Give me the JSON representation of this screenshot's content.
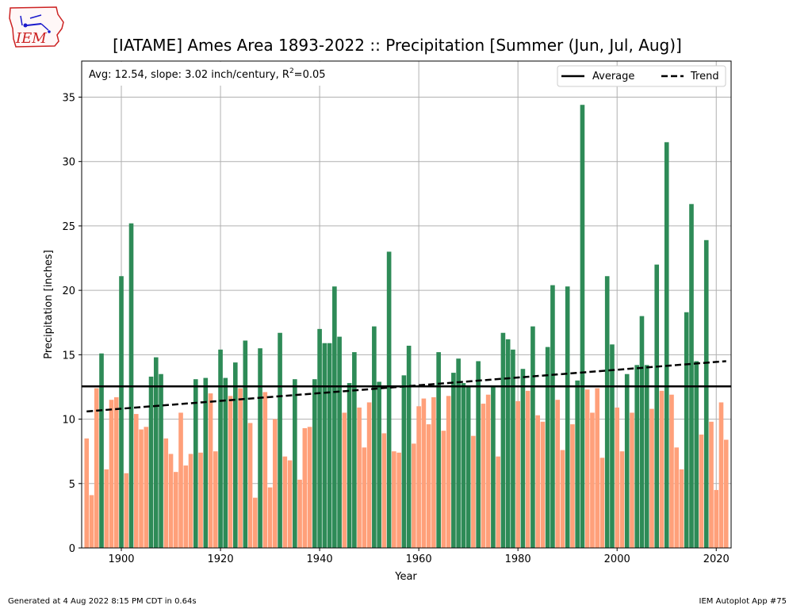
{
  "logo_text": "IEM",
  "footer": {
    "generated": "Generated at 4 Aug 2022 8:15 PM CDT in 0.64s",
    "app": "IEM Autoplot App #75"
  },
  "chart_data": {
    "type": "bar",
    "title": "[IATAME] Ames Area 1893-2022 :: Precipitation [Summer (Jun, Jul, Aug)]",
    "xlabel": "Year",
    "ylabel": "Precipitation [inches]",
    "annotation": {
      "text": "Avg: 12.54, slope: 3.02 inch/century, R",
      "sup": "2",
      "suffix": "=0.05"
    },
    "xlim": [
      1892,
      2023
    ],
    "ylim": [
      0,
      37.8
    ],
    "xticks": [
      1900,
      1920,
      1940,
      1960,
      1980,
      2000,
      2020
    ],
    "yticks": [
      0,
      5,
      10,
      15,
      20,
      25,
      30,
      35
    ],
    "grid": true,
    "legend": {
      "position": "top-right",
      "entries": [
        "Average",
        "Trend"
      ]
    },
    "average": 12.54,
    "trend": {
      "start_year": 1893,
      "start_value": 10.6,
      "end_year": 2022,
      "end_value": 14.5
    },
    "colors": {
      "above": "#2e8b57",
      "below": "#ffa07a",
      "lines": "#000000"
    },
    "x": [
      1893,
      1894,
      1895,
      1896,
      1897,
      1898,
      1899,
      1900,
      1901,
      1902,
      1903,
      1904,
      1905,
      1906,
      1907,
      1908,
      1909,
      1910,
      1911,
      1912,
      1913,
      1914,
      1915,
      1916,
      1917,
      1918,
      1919,
      1920,
      1921,
      1922,
      1923,
      1924,
      1925,
      1926,
      1927,
      1928,
      1929,
      1930,
      1931,
      1932,
      1933,
      1934,
      1935,
      1936,
      1937,
      1938,
      1939,
      1940,
      1941,
      1942,
      1943,
      1944,
      1945,
      1946,
      1947,
      1948,
      1949,
      1950,
      1951,
      1952,
      1953,
      1954,
      1955,
      1956,
      1957,
      1958,
      1959,
      1960,
      1961,
      1962,
      1963,
      1964,
      1965,
      1966,
      1967,
      1968,
      1969,
      1970,
      1971,
      1972,
      1973,
      1974,
      1975,
      1976,
      1977,
      1978,
      1979,
      1980,
      1981,
      1982,
      1983,
      1984,
      1985,
      1986,
      1987,
      1988,
      1989,
      1990,
      1991,
      1992,
      1993,
      1994,
      1995,
      1996,
      1997,
      1998,
      1999,
      2000,
      2001,
      2002,
      2003,
      2004,
      2005,
      2006,
      2007,
      2008,
      2009,
      2010,
      2011,
      2012,
      2013,
      2014,
      2015,
      2016,
      2017,
      2018,
      2019,
      2020,
      2021,
      2022
    ],
    "values": [
      8.5,
      4.1,
      12.4,
      15.1,
      6.1,
      11.5,
      11.7,
      21.1,
      5.8,
      25.2,
      10.4,
      9.2,
      9.4,
      13.3,
      14.8,
      13.5,
      8.5,
      7.3,
      5.9,
      10.5,
      6.4,
      7.3,
      13.1,
      7.4,
      13.2,
      12.0,
      7.5,
      15.4,
      13.2,
      11.8,
      14.4,
      12.4,
      16.1,
      9.7,
      3.9,
      15.5,
      12.1,
      4.7,
      10.0,
      16.7,
      7.1,
      6.8,
      13.1,
      5.3,
      9.3,
      9.4,
      13.1,
      17.0,
      15.9,
      15.9,
      20.3,
      16.4,
      10.5,
      12.8,
      15.2,
      10.9,
      7.8,
      11.3,
      17.2,
      12.9,
      8.9,
      23.0,
      7.5,
      7.4,
      13.4,
      15.7,
      8.1,
      11.0,
      11.6,
      9.6,
      11.7,
      15.2,
      9.1,
      11.8,
      13.6,
      14.7,
      12.8,
      12.6,
      8.7,
      14.5,
      11.2,
      11.9,
      12.6,
      7.1,
      16.7,
      16.2,
      15.4,
      11.4,
      13.9,
      12.2,
      17.2,
      10.3,
      9.8,
      15.6,
      20.4,
      11.5,
      7.6,
      20.3,
      9.6,
      13.0,
      34.4,
      12.3,
      10.5,
      12.4,
      7.0,
      21.1,
      15.8,
      10.9,
      7.5,
      13.5,
      10.5,
      14.2,
      18.0,
      14.2,
      10.8,
      22.0,
      12.2,
      31.5,
      11.9,
      7.8,
      6.1,
      18.3,
      26.7,
      14.5,
      8.8,
      23.9,
      9.8,
      4.5,
      11.3,
      8.4
    ]
  }
}
